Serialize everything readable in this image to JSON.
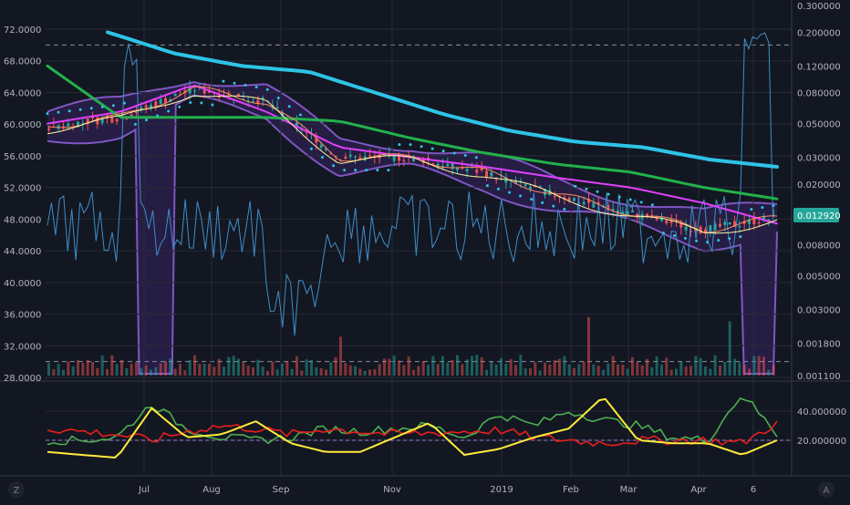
{
  "colors": {
    "background": "#131722",
    "grid": "#262b38",
    "axis_text": "#b2b5be",
    "candle_up": "#26a69a",
    "candle_down": "#ef5350",
    "sma_long": "#2ec3e6",
    "sma_mid": "#22b14c",
    "sma_short": "#e040fb",
    "bollinger": "#7e57c2",
    "bollinger_fill": "#2a1f4a",
    "volatility": "#3d8ec9",
    "ema_fast": "#ff8a65",
    "ema_slow": "#fff59d",
    "adx_green": "#4caf50",
    "adx_red": "#e91e1e",
    "adx_yellow": "#ffeb3b",
    "price_tag": "#26a69a",
    "dashed": "#8a8f9c"
  },
  "icons": {
    "left_corner": "Z",
    "right_corner": "A"
  },
  "price_tag": "0.012920",
  "chart_data": [
    {
      "type": "line",
      "title": "",
      "x_tick_labels": [
        "Jul",
        "Aug",
        "Sep",
        "Nov",
        "2019",
        "Feb",
        "Mar",
        "Apr",
        "6"
      ],
      "left_axis": {
        "ticks": [
          "72.0000",
          "68.0000",
          "64.0000",
          "60.0000",
          "56.0000",
          "52.0000",
          "48.0000",
          "44.0000",
          "40.0000",
          "36.0000",
          "32.0000",
          "28.0000"
        ],
        "range": [
          28,
          72
        ]
      },
      "right_axis": {
        "scale": "log",
        "ticks": [
          "0.300000",
          "0.200000",
          "0.120000",
          "0.080000",
          "0.050000",
          "0.030000",
          "0.020000",
          "0.012920",
          "0.008000",
          "0.005000",
          "0.003000",
          "0.001800",
          "0.001100"
        ]
      },
      "dashed_levels": [
        70,
        30
      ],
      "series": [
        {
          "key": "sma_long",
          "values": [
            0.2,
            0.145,
            0.12,
            0.11,
            0.08,
            0.058,
            0.045,
            0.038,
            0.035,
            0.029,
            0.026
          ]
        },
        {
          "key": "sma_mid",
          "values": [
            0.12,
            0.055,
            0.055,
            0.055,
            0.052,
            0.04,
            0.032,
            0.027,
            0.024,
            0.019,
            0.016
          ]
        },
        {
          "key": "sma_short",
          "values": [
            0.05,
            0.06,
            0.09,
            0.06,
            0.035,
            0.03,
            0.026,
            0.022,
            0.019,
            0.015,
            0.011
          ]
        },
        {
          "key": "price",
          "values": [
            0.048,
            0.055,
            0.085,
            0.07,
            0.03,
            0.03,
            0.024,
            0.017,
            0.013,
            0.01,
            0.012
          ]
        }
      ]
    },
    {
      "type": "line",
      "title": "",
      "y_ticks": [
        "40.000000",
        "20.000000"
      ],
      "ylim": [
        0,
        55
      ],
      "dashed_level": 20,
      "series": [
        {
          "key": "adx_green",
          "values": [
            20,
            20,
            22,
            45,
            28,
            22,
            20,
            22,
            28,
            26,
            28,
            30,
            22,
            38,
            30,
            40,
            34,
            30,
            22,
            20,
            52,
            24
          ]
        },
        {
          "key": "adx_red",
          "values": [
            28,
            26,
            24,
            20,
            26,
            30,
            28,
            24,
            28,
            26,
            24,
            25,
            26,
            27,
            22,
            20,
            18,
            20,
            20,
            20,
            18,
            32
          ]
        },
        {
          "key": "adx_yellow",
          "values": [
            12,
            10,
            8,
            42,
            22,
            24,
            33,
            18,
            12,
            12,
            22,
            32,
            10,
            14,
            22,
            28,
            50,
            20,
            18,
            18,
            10,
            20
          ]
        }
      ]
    }
  ]
}
